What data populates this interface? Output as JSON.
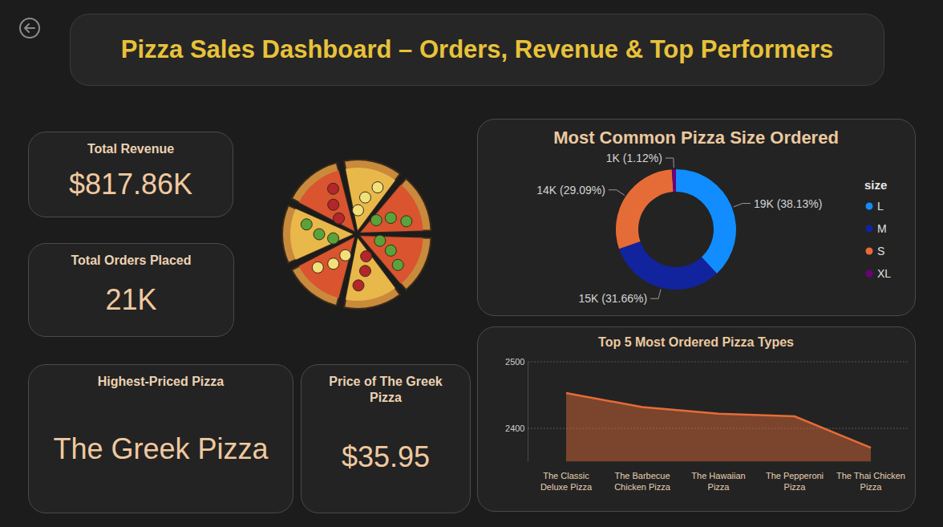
{
  "header": {
    "title": "Pizza Sales Dashboard – Orders, Revenue & Top Performers"
  },
  "cards": [
    {
      "label": "Total Revenue",
      "value": "$817.86K"
    },
    {
      "label": "Total Orders Placed",
      "value": "21K"
    },
    {
      "label": "Highest-Priced Pizza",
      "value": "The Greek Pizza"
    },
    {
      "label": "Price of The Greek Pizza",
      "value": "$35.95"
    }
  ],
  "chart_data": [
    {
      "type": "pie",
      "title": "Most Common Pizza Size Ordered",
      "legend_title": "size",
      "categories": [
        "L",
        "M",
        "S",
        "XL"
      ],
      "values": [
        18526,
        15385,
        14137,
        544
      ],
      "value_labels": [
        "19K (38.13%)",
        "15K (31.66%)",
        "14K (29.09%)",
        "1K (1.12%)"
      ],
      "colors": [
        "#118dff",
        "#12239e",
        "#e66c37",
        "#6b007b"
      ],
      "data_labels": true,
      "legend": "right"
    },
    {
      "type": "area",
      "title": "Top 5 Most Ordered Pizza Types",
      "categories": [
        "The Classic Deluxe Pizza",
        "The Barbecue Chicken Pizza",
        "The Hawaiian Pizza",
        "The Pepperoni Pizza",
        "The Thai Chicken Pizza"
      ],
      "values": [
        2453,
        2432,
        2422,
        2418,
        2371
      ],
      "color": "#e66c37",
      "ylim": [
        2350,
        2500
      ],
      "yticks": [
        2400,
        2500
      ],
      "grid": true
    }
  ]
}
